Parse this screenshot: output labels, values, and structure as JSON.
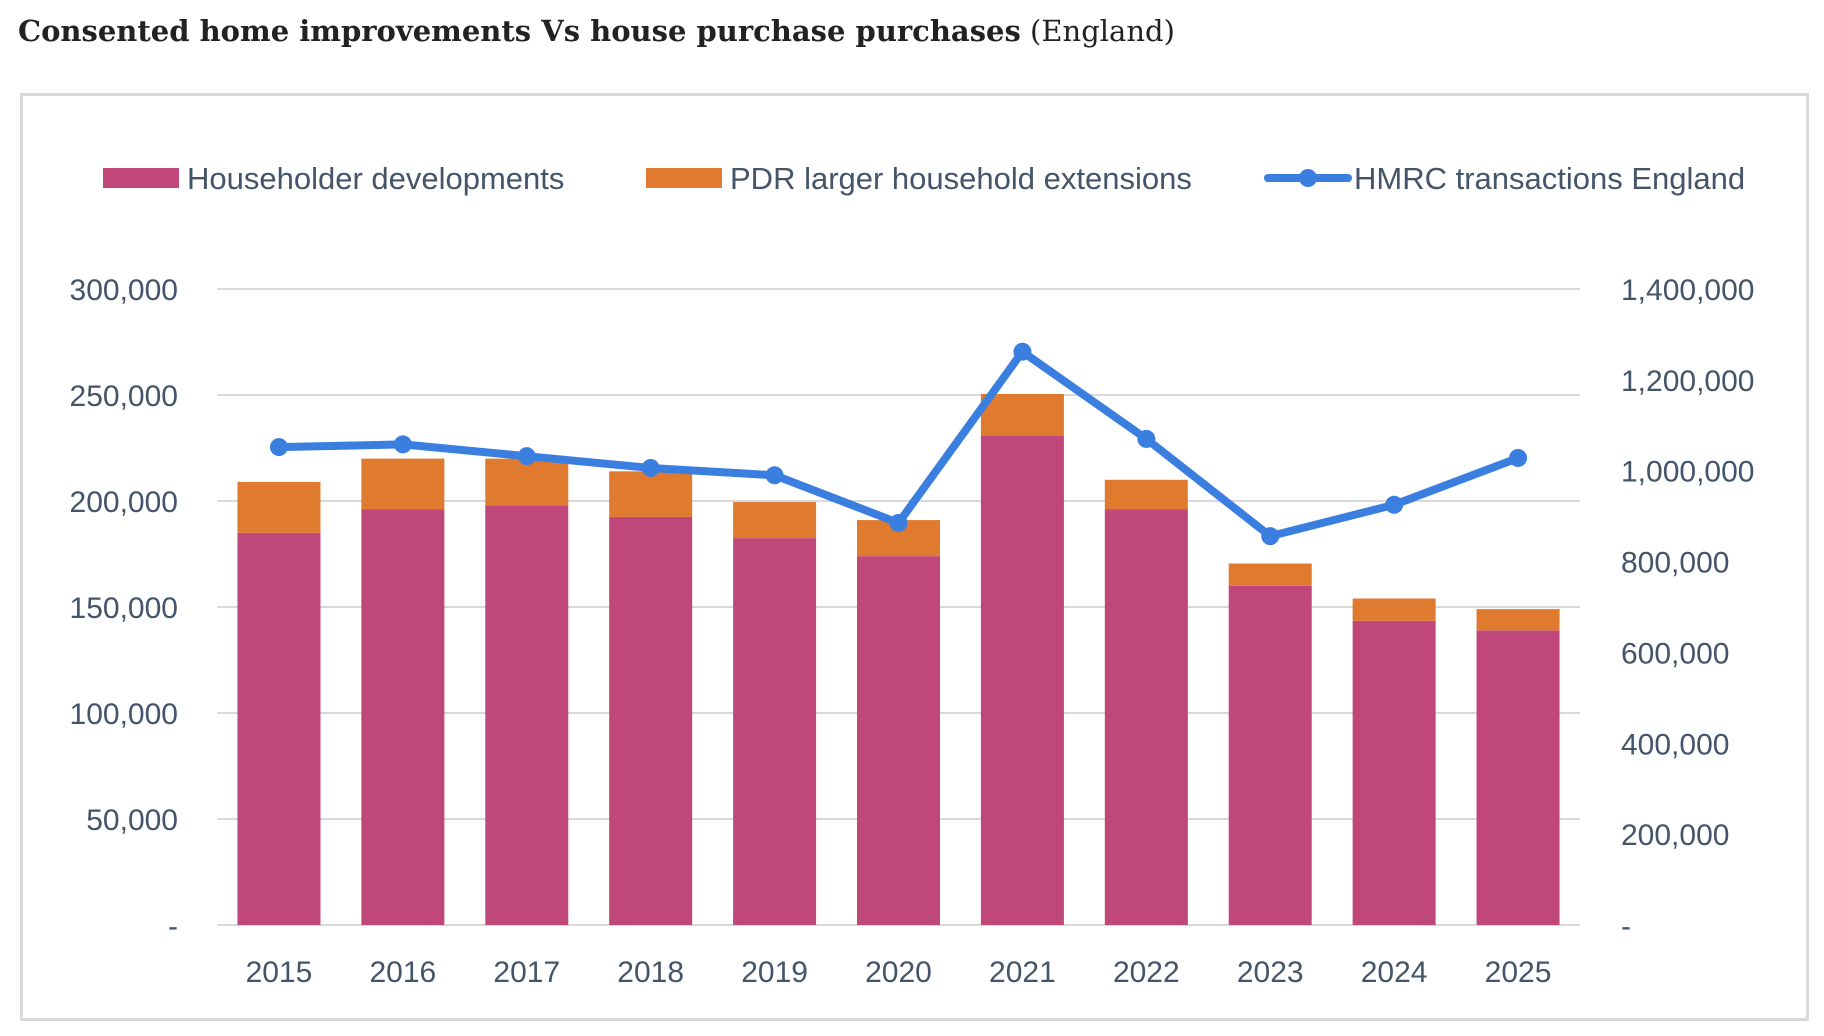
{
  "title": {
    "bold": "Consented home improvements Vs house purchase purchases",
    "region": "(England)"
  },
  "colors": {
    "householder": "#c0477a",
    "pdr": "#e07a2e",
    "hmrc": "#3a7ee0",
    "grid": "#d9d9d9",
    "axis_text": "#44546a"
  },
  "chart_data": {
    "type": "bar",
    "stacked": true,
    "title": "Consented home improvements Vs house purchase purchases (England)",
    "categories": [
      "2015",
      "2016",
      "2017",
      "2018",
      "2019",
      "2020",
      "2021",
      "2022",
      "2023",
      "2024",
      "2025"
    ],
    "series": [
      {
        "name": "Householder developments",
        "type": "bar",
        "axis": "left",
        "values": [
          185000,
          196000,
          198000,
          192500,
          182500,
          174000,
          231000,
          196000,
          160000,
          143500,
          139000
        ]
      },
      {
        "name": "PDR larger household extensions",
        "type": "bar",
        "axis": "left",
        "values": [
          24000,
          24000,
          22000,
          21500,
          17000,
          17000,
          19500,
          14000,
          10500,
          10500,
          10000
        ]
      },
      {
        "name": "HMRC transactions England",
        "type": "line",
        "axis": "right",
        "values": [
          1052000,
          1058000,
          1032000,
          1006000,
          990000,
          885000,
          1262000,
          1070000,
          856000,
          925000,
          1028000
        ]
      }
    ],
    "left_axis": {
      "min": 0,
      "max": 300000,
      "step": 50000,
      "tick_labels": [
        "-",
        "50,000",
        "100,000",
        "150,000",
        "200,000",
        "250,000",
        "300,000"
      ]
    },
    "right_axis": {
      "min": 0,
      "max": 1400000,
      "step": 200000,
      "tick_labels": [
        "-",
        "200,000",
        "400,000",
        "600,000",
        "800,000",
        "1,000,000",
        "1,200,000",
        "1,400,000"
      ]
    },
    "legend": {
      "position": "top",
      "entries": [
        "Householder developments",
        "PDR larger household extensions",
        "HMRC transactions England"
      ]
    },
    "grid": true
  }
}
